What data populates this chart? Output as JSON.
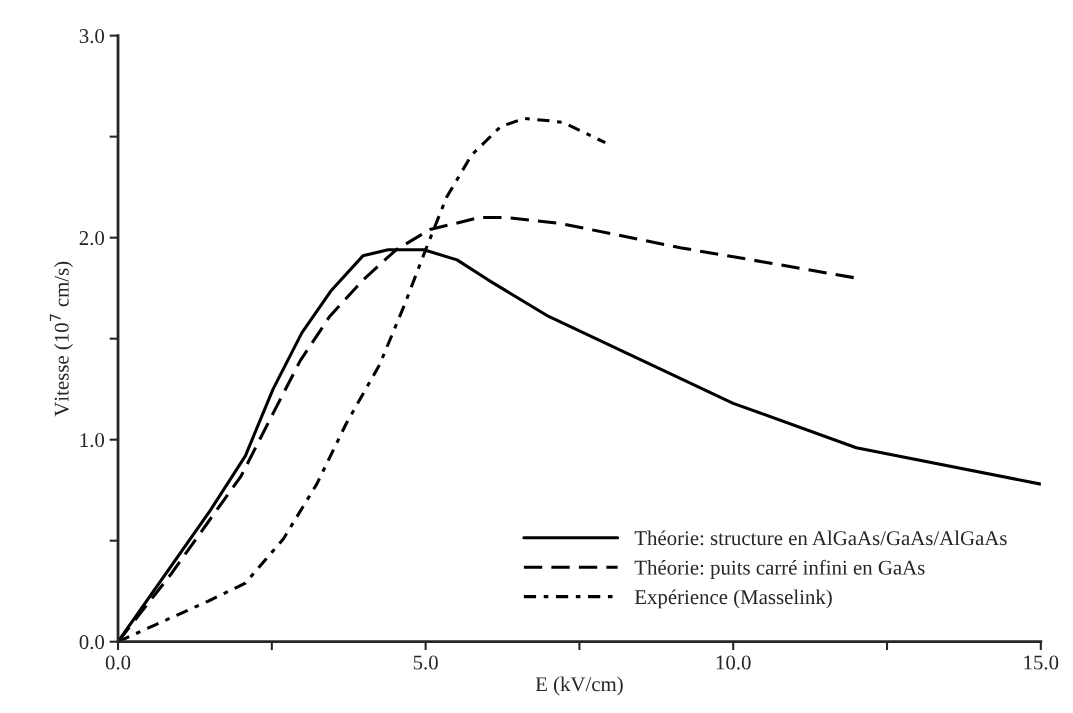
{
  "chart_data": {
    "type": "line",
    "xlabel": "E (kV/cm)",
    "ylabel": "Vitesse (10$^{7}$ cm/s)",
    "xlim": [
      0,
      15
    ],
    "ylim": [
      0,
      3
    ],
    "xticks": [
      {
        "value": 0,
        "label": "0.0"
      },
      {
        "value": 2.5,
        "label": null
      },
      {
        "value": 5,
        "label": "5.0"
      },
      {
        "value": 7.5,
        "label": null
      },
      {
        "value": 10,
        "label": "10.0"
      },
      {
        "value": 12.5,
        "label": null
      },
      {
        "value": 15,
        "label": "15.0"
      }
    ],
    "yticks": [
      {
        "value": 0,
        "label": "0.0"
      },
      {
        "value": 0.5,
        "label": null
      },
      {
        "value": 1,
        "label": "1.0"
      },
      {
        "value": 1.5,
        "label": null
      },
      {
        "value": 2,
        "label": "2.0"
      },
      {
        "value": 2.5,
        "label": null
      },
      {
        "value": 3,
        "label": "3.0"
      }
    ],
    "grid": false,
    "legend": "bottom right",
    "marker": "none",
    "series": [
      {
        "name": "Théorie: structure en AlGaAs/GaAs/AlGaAs",
        "color": "#000000",
        "line_style": "solid",
        "x": [
          0,
          1.5,
          2.07,
          2.52,
          2.99,
          3.47,
          3.98,
          4.39,
          4.97,
          5.51,
          6.02,
          7.0,
          10,
          12,
          15
        ],
        "values": [
          0,
          0.65,
          0.92,
          1.25,
          1.53,
          1.74,
          1.91,
          1.94,
          1.94,
          1.89,
          1.79,
          1.61,
          1.18,
          0.96,
          0.78
        ]
      },
      {
        "name": "Théorie: puits carré infini en GaAs",
        "color": "#000000",
        "line_style": "dashed",
        "x": [
          0,
          0.85,
          1.46,
          2.0,
          2.52,
          2.96,
          3.44,
          3.98,
          4.52,
          5.07,
          5.88,
          6.29,
          7.2,
          9.14,
          10.49,
          12.0
        ],
        "values": [
          0,
          0.33,
          0.59,
          0.82,
          1.13,
          1.39,
          1.61,
          1.79,
          1.94,
          2.04,
          2.1,
          2.1,
          2.07,
          1.95,
          1.88,
          1.8
        ]
      },
      {
        "name": "Expérience (Masselink)",
        "color": "#000000",
        "line_style": "dashdot",
        "x": [
          0,
          0.58,
          1.46,
          2.07,
          2.69,
          3.23,
          3.71,
          4.25,
          4.66,
          5.0,
          5.34,
          5.75,
          6.22,
          6.6,
          6.97,
          7.24,
          7.92
        ],
        "values": [
          0,
          0.08,
          0.2,
          0.29,
          0.51,
          0.78,
          1.08,
          1.37,
          1.67,
          1.94,
          2.2,
          2.41,
          2.55,
          2.59,
          2.58,
          2.57,
          2.47
        ]
      }
    ]
  }
}
